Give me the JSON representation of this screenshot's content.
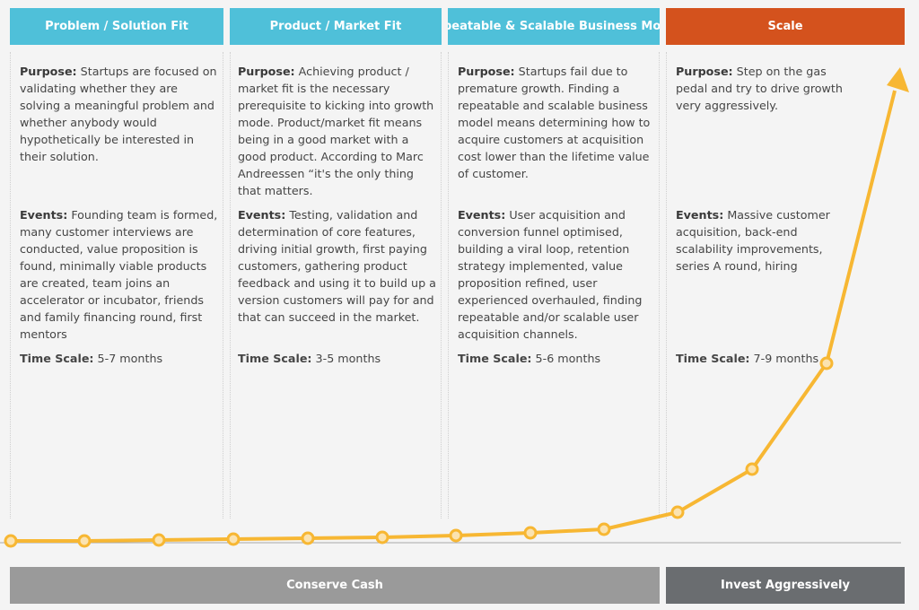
{
  "phases": [
    {
      "title": "Problem / Solution Fit",
      "purpose_label": "Purpose:",
      "purpose": "Startups are focused on validating whether they are solving a meaningful problem and whether anybody would hypothetically be interested in their solution.",
      "events_label": "Events:",
      "events": "Founding team is formed, many customer interviews are conducted, value proposition is found, minimally viable products are created, team joins an accelerator or incubator, friends and family financing round, first mentors",
      "time_label": "Time Scale:",
      "time": "5-7 months"
    },
    {
      "title": "Product / Market Fit",
      "purpose_label": "Purpose:",
      "purpose": "Achieving product / market fit is the necessary prerequisite to kicking into growth mode. Product/market fit means being in a good market with a good product. According to Marc Andreessen “it's the only thing that matters.",
      "events_label": "Events:",
      "events": "Testing, validation and determination of core features, driving initial growth, first paying customers, gathering product feedback and using it to build up a version customers will pay for and that can succeed in the market.",
      "time_label": "Time Scale:",
      "time": "3-5 months"
    },
    {
      "title": "Repeatable & Scalable Business Model",
      "purpose_label": "Purpose:",
      "purpose": "Startups fail due to premature growth. Finding a repeatable and scalable business model means determining how to acquire customers at acquisition cost lower than the lifetime value of customer.",
      "events_label": "Events:",
      "events": "User acquisition and conversion funnel optimised, building a viral loop, retention strategy implemented, value proposition refined, user experienced overhauled, finding repeatable and/or scalable user acquisition channels.",
      "time_label": "Time Scale:",
      "time": "5-6 months"
    },
    {
      "title": "Scale",
      "purpose_label": "Purpose:",
      "purpose": "Step on the gas pedal and try to drive growth very aggressively.",
      "events_label": "Events:",
      "events": "Massive customer acquisition, back-end scalability improvements, series A round, hiring",
      "time_label": "Time Scale:",
      "time": "7-9 months"
    }
  ],
  "footer": {
    "left": "Conserve Cash",
    "right": "Invest Aggressively"
  },
  "colors": {
    "header_blue": "#4fc0d9",
    "header_orange": "#d4521d",
    "curve": "#f7b733",
    "footer_left": "#9a9a9a",
    "footer_right": "#6a6d70"
  },
  "curve_marker_icon": "circle-marker",
  "curve_end_icon": "arrow-head-icon"
}
